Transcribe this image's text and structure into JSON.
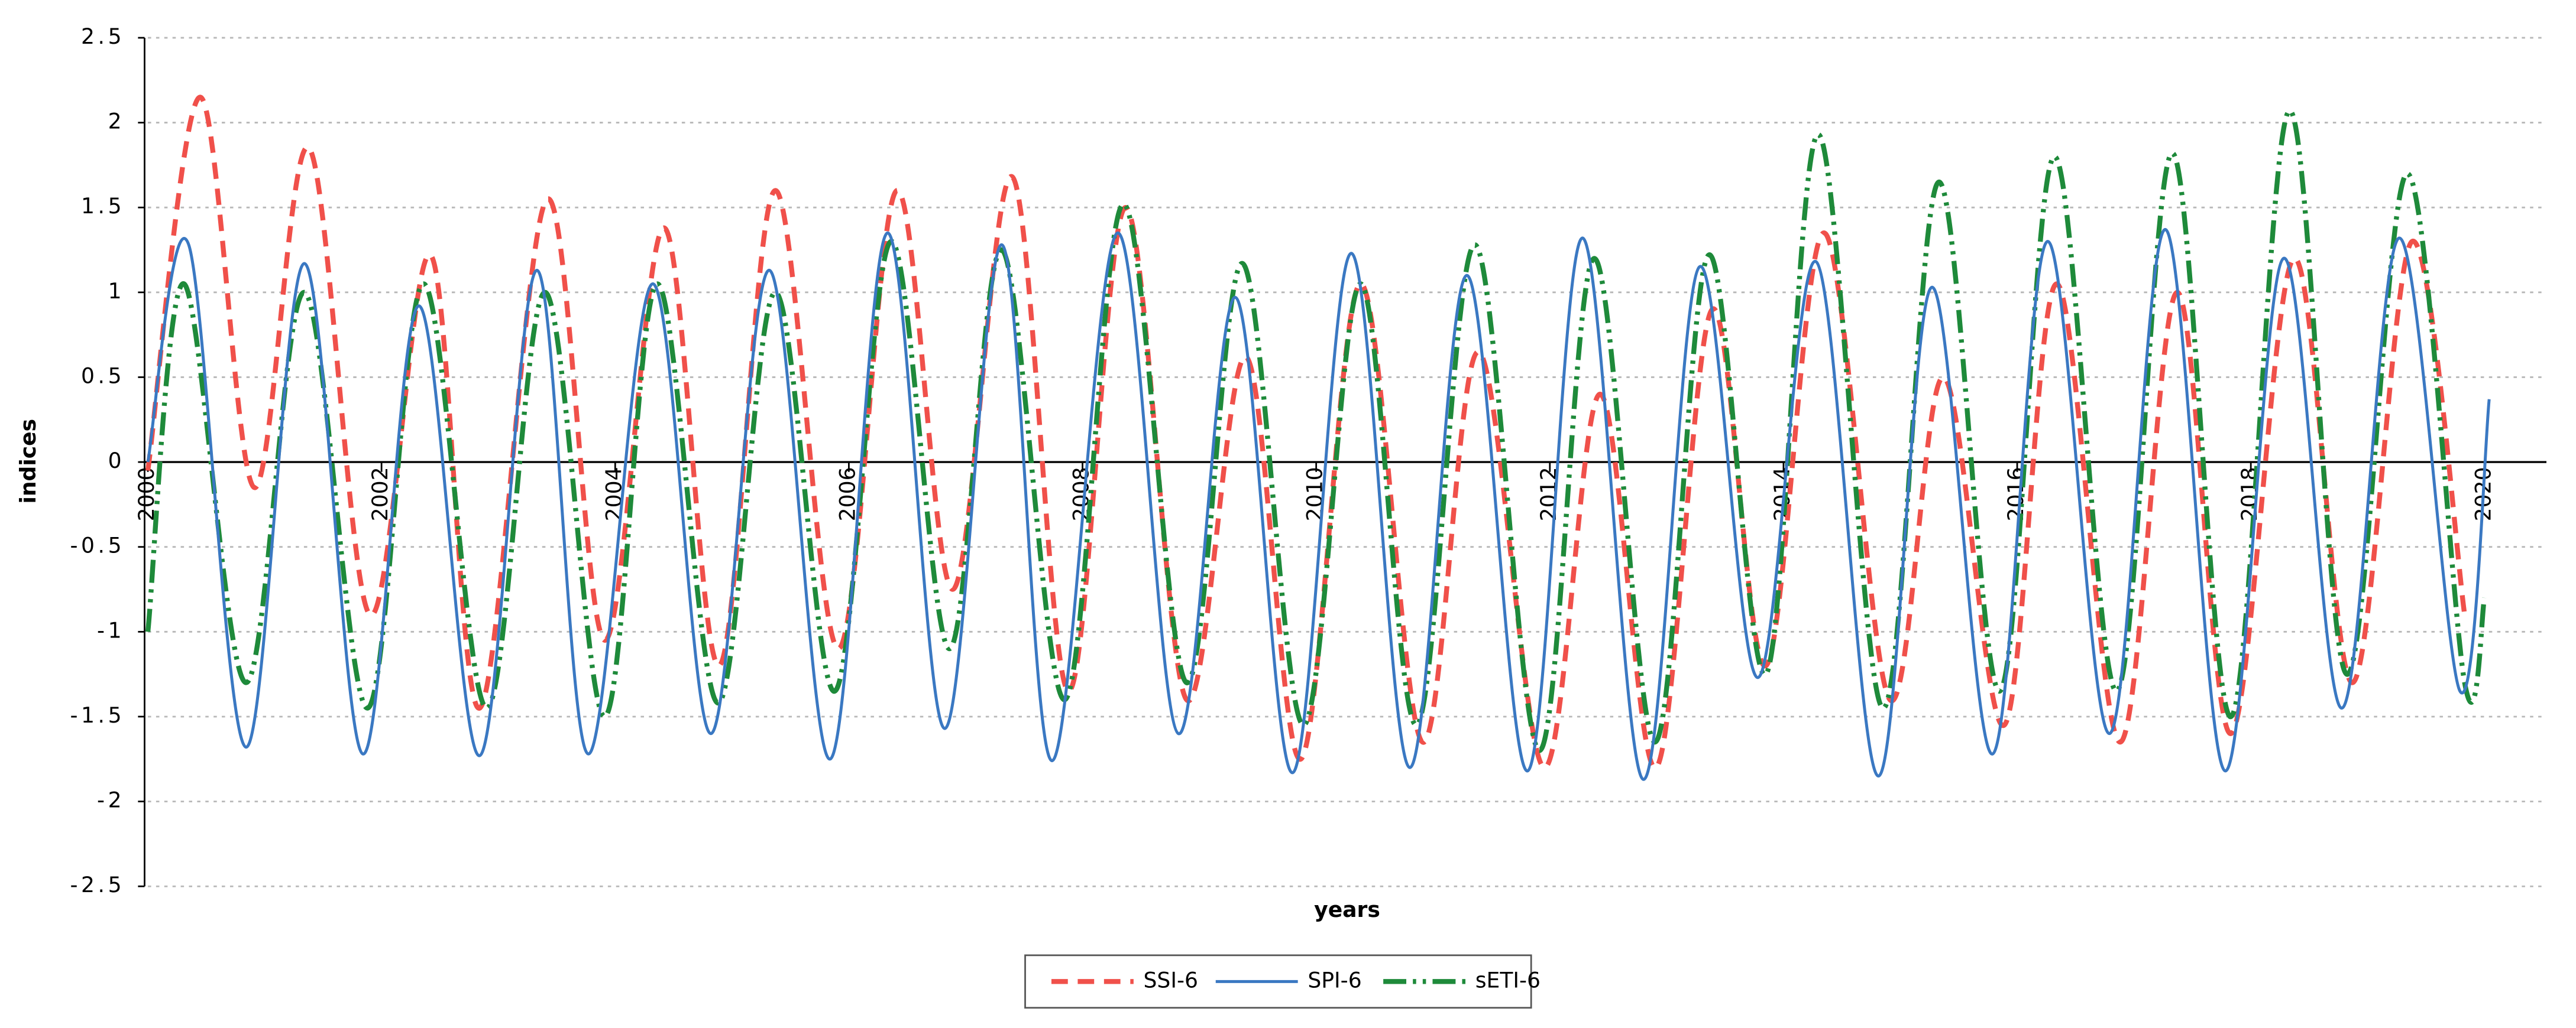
{
  "chart_data": {
    "type": "line",
    "x_label": "years",
    "y_label": "indices",
    "xlim": [
      2000,
      2020.53
    ],
    "xticks": [
      2000,
      2002,
      2004,
      2006,
      2008,
      2010,
      2012,
      2014,
      2016,
      2018,
      2020
    ],
    "ylim": [
      -2.5,
      2.5
    ],
    "yticks": [
      2.5,
      2,
      1.5,
      1,
      0.5,
      0,
      -0.5,
      -1,
      -1.5,
      -2,
      -2.5
    ],
    "grid": true,
    "legend": "bottom",
    "series": [
      {
        "name": "SSI-6",
        "color": "#f0504a",
        "x": [
          2000.0,
          2000.45,
          2000.91,
          2001.38,
          2001.9,
          2002.42,
          2002.84,
          2003.42,
          2003.91,
          2004.42,
          2004.89,
          2005.37,
          2005.91,
          2006.41,
          2006.89,
          2007.4,
          2007.88,
          2008.37,
          2008.89,
          2009.4,
          2009.87,
          2010.38,
          2010.91,
          2011.39,
          2011.95,
          2012.43,
          2012.91,
          2013.39,
          2013.85,
          2014.35,
          2014.91,
          2015.37,
          2015.89,
          2016.34,
          2016.88,
          2017.37,
          2017.83,
          2018.37,
          2018.87,
          2019.38,
          2019.83
        ],
        "values": [
          -0.05,
          2.15,
          -0.15,
          1.85,
          -0.9,
          1.22,
          -1.45,
          1.55,
          -1.05,
          1.38,
          -1.2,
          1.6,
          -1.1,
          1.6,
          -0.75,
          1.68,
          -1.35,
          1.5,
          -1.4,
          0.62,
          -1.75,
          1.05,
          -1.65,
          0.65,
          -1.8,
          0.4,
          -1.8,
          0.9,
          -1.2,
          1.35,
          -1.4,
          0.5,
          -1.55,
          1.05,
          -1.65,
          1.0,
          -1.6,
          1.2,
          -1.3,
          1.3,
          -0.9
        ]
      },
      {
        "name": "SPI-6",
        "color": "#3a78c2",
        "x": [
          2000.0,
          2000.35,
          2000.84,
          2001.34,
          2001.84,
          2002.32,
          2002.84,
          2003.33,
          2003.77,
          2004.32,
          2004.82,
          2005.32,
          2005.84,
          2006.33,
          2006.82,
          2007.31,
          2007.74,
          2008.3,
          2008.82,
          2009.31,
          2009.8,
          2010.3,
          2010.8,
          2011.29,
          2011.81,
          2012.28,
          2012.8,
          2013.28,
          2013.78,
          2014.28,
          2014.81,
          2015.27,
          2015.79,
          2016.26,
          2016.79,
          2017.27,
          2017.78,
          2018.28,
          2018.78,
          2019.27,
          2019.79,
          2020.04
        ],
        "values": [
          0.0,
          1.28,
          -1.68,
          1.17,
          -1.72,
          0.92,
          -1.73,
          1.13,
          -1.72,
          1.05,
          -1.6,
          1.13,
          -1.75,
          1.35,
          -1.57,
          1.28,
          -1.76,
          1.35,
          -1.6,
          0.97,
          -1.83,
          1.23,
          -1.8,
          1.1,
          -1.82,
          1.32,
          -1.87,
          1.15,
          -1.27,
          1.18,
          -1.85,
          1.03,
          -1.72,
          1.3,
          -1.6,
          1.37,
          -1.82,
          1.2,
          -1.45,
          1.32,
          -1.35,
          0.37
        ]
      },
      {
        "name": "sETI-6",
        "color": "#1e8a3a",
        "x": [
          2000.0,
          2000.31,
          2000.84,
          2001.34,
          2001.88,
          2002.36,
          2002.9,
          2003.4,
          2003.91,
          2004.36,
          2004.88,
          2005.37,
          2005.88,
          2006.36,
          2006.86,
          2007.31,
          2007.85,
          2008.35,
          2008.89,
          2009.37,
          2009.89,
          2010.38,
          2010.86,
          2011.36,
          2011.91,
          2012.38,
          2012.9,
          2013.36,
          2013.85,
          2014.3,
          2014.85,
          2015.33,
          2015.85,
          2016.32,
          2016.85,
          2017.33,
          2017.83,
          2018.33,
          2018.82,
          2019.34,
          2019.83,
          2020.0
        ],
        "values": [
          -1.0,
          1.05,
          -1.3,
          1.0,
          -1.45,
          1.05,
          -1.45,
          1.0,
          -1.5,
          1.05,
          -1.42,
          1.0,
          -1.35,
          1.3,
          -1.1,
          1.25,
          -1.4,
          1.52,
          -1.3,
          1.17,
          -1.55,
          1.05,
          -1.55,
          1.28,
          -1.7,
          1.2,
          -1.65,
          1.22,
          -1.25,
          1.93,
          -1.45,
          1.65,
          -1.35,
          1.8,
          -1.35,
          1.82,
          -1.5,
          2.07,
          -1.25,
          1.7,
          -1.3,
          -0.8
        ]
      }
    ]
  }
}
